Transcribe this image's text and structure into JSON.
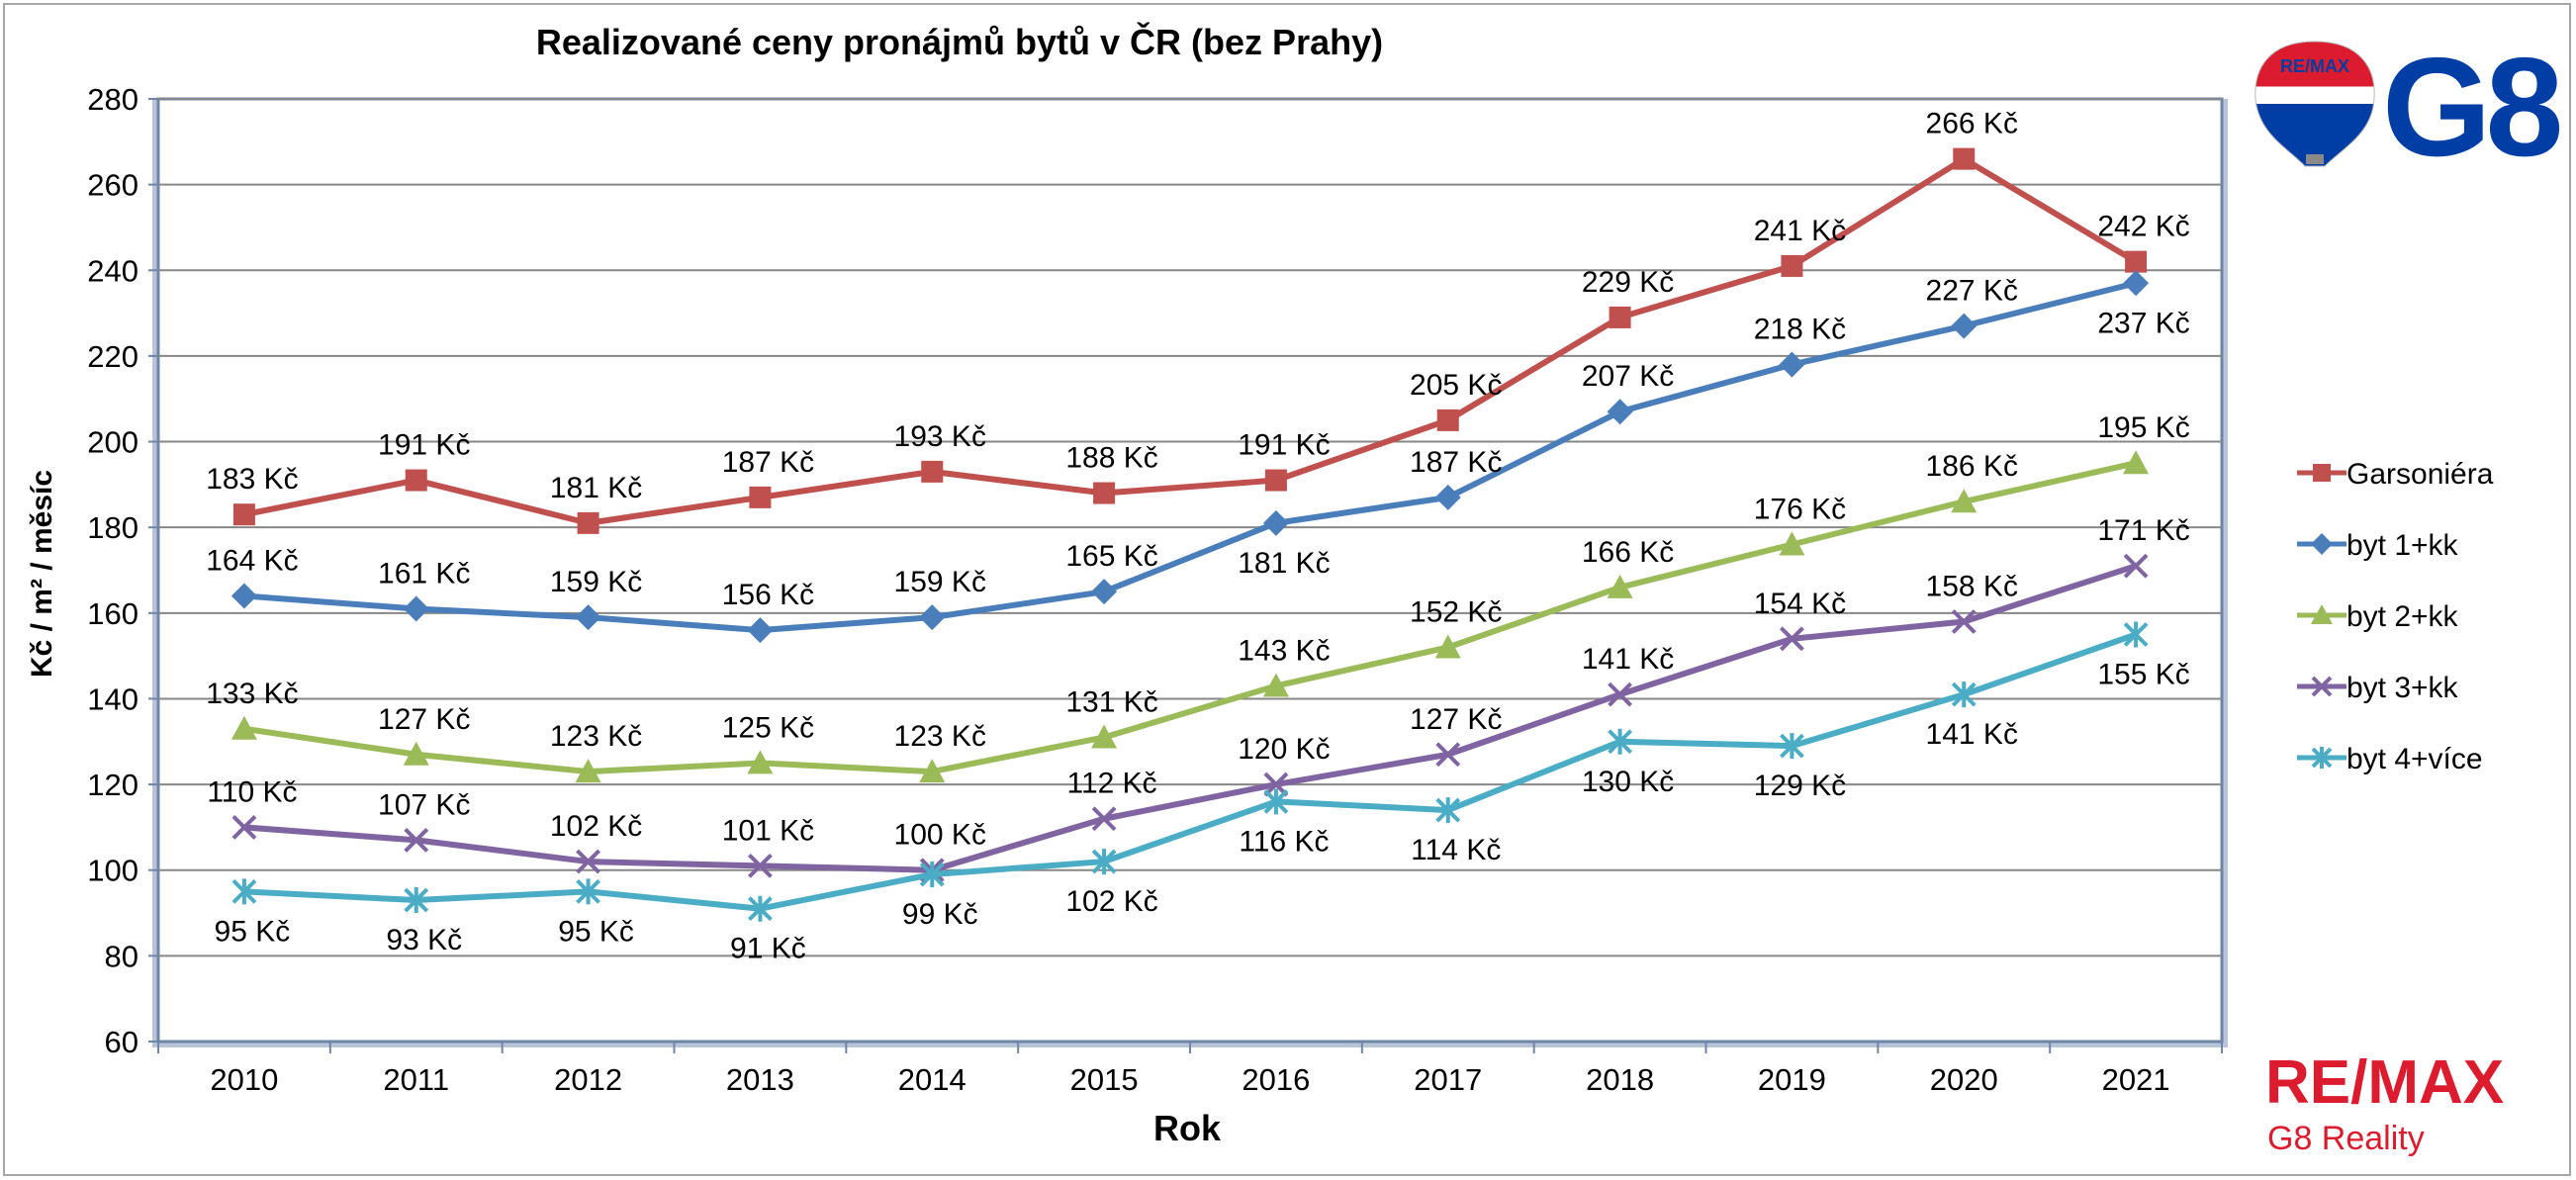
{
  "chart_data": {
    "type": "line",
    "title": "Realizované ceny pronájmů bytů v ČR (bez Prahy)",
    "xlabel": "Rok",
    "ylabel": "Kč / m² / měsíc",
    "ylim": [
      60,
      280
    ],
    "yticks": [
      "60",
      "80",
      "100",
      "120",
      "140",
      "160",
      "180",
      "200",
      "220",
      "240",
      "260",
      "280"
    ],
    "yticks_values": [
      60,
      80,
      100,
      120,
      140,
      160,
      180,
      200,
      220,
      240,
      260,
      280
    ],
    "categories": [
      "2010",
      "2011",
      "2012",
      "2013",
      "2014",
      "2015",
      "2016",
      "2017",
      "2018",
      "2019",
      "2020",
      "2021"
    ],
    "grid": true,
    "legend_position": "right",
    "series": [
      {
        "name": "Garsoniéra",
        "color": "#c0504d",
        "marker": "square",
        "values": [
          183,
          191,
          181,
          187,
          193,
          188,
          191,
          205,
          229,
          241,
          266,
          242
        ],
        "labels": [
          "183 Kč",
          "191 Kč",
          "181 Kč",
          "187 Kč",
          "193 Kč",
          "188 Kč",
          "191 Kč",
          "205 Kč",
          "229 Kč",
          "241 Kč",
          "266 Kč",
          "242 Kč"
        ]
      },
      {
        "name": "byt 1+kk",
        "color": "#4a7ebb",
        "marker": "diamond",
        "values": [
          164,
          161,
          159,
          156,
          159,
          165,
          181,
          187,
          207,
          218,
          227,
          237
        ],
        "labels": [
          "164 Kč",
          "161 Kč",
          "159 Kč",
          "156 Kč",
          "159 Kč",
          "165 Kč",
          "181 Kč",
          "187 Kč",
          "207 Kč",
          "218 Kč",
          "227 Kč",
          "237 Kč"
        ]
      },
      {
        "name": "byt 2+kk",
        "color": "#9bbb59",
        "marker": "triangle",
        "values": [
          133,
          127,
          123,
          125,
          123,
          131,
          143,
          152,
          166,
          176,
          186,
          195
        ],
        "labels": [
          "133 Kč",
          "127 Kč",
          "123 Kč",
          "125 Kč",
          "123 Kč",
          "131 Kč",
          "143 Kč",
          "152 Kč",
          "166 Kč",
          "176 Kč",
          "186 Kč",
          "195 Kč"
        ]
      },
      {
        "name": "byt 3+kk",
        "color": "#8064a2",
        "marker": "x",
        "values": [
          110,
          107,
          102,
          101,
          100,
          112,
          120,
          127,
          141,
          154,
          158,
          171
        ],
        "labels": [
          "110 Kč",
          "107 Kč",
          "102 Kč",
          "101 Kč",
          "100 Kč",
          "112 Kč",
          "120 Kč",
          "127 Kč",
          "141 Kč",
          "154 Kč",
          "158 Kč",
          "171 Kč"
        ]
      },
      {
        "name": "byt 4+více",
        "color": "#4bacc6",
        "marker": "star",
        "values": [
          95,
          93,
          95,
          91,
          99,
          102,
          116,
          114,
          130,
          129,
          141,
          155
        ],
        "labels": [
          "95 Kč",
          "93 Kč",
          "95 Kč",
          "91 Kč",
          "99 Kč",
          "102 Kč",
          "116 Kč",
          "114 Kč",
          "130 Kč",
          "129 Kč",
          "141 Kč",
          "155 Kč"
        ]
      }
    ]
  },
  "logos": {
    "remax_balloon_text": "RE/MAX",
    "g8_text": "G8",
    "remax_wordmark": "RE/MAX",
    "remax_subtitle": "G8 Reality",
    "remax_red": "#dc1c2e",
    "remax_blue": "#003da5"
  }
}
